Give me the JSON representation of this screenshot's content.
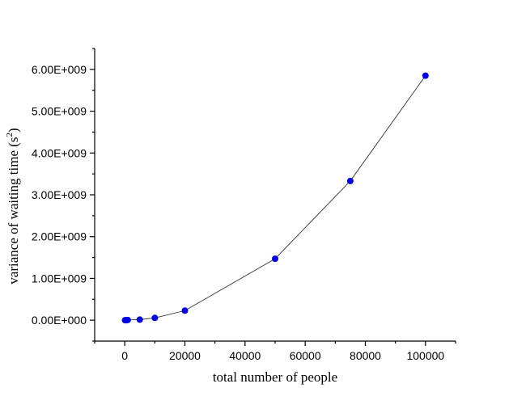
{
  "chart_data": {
    "type": "scatter",
    "title": "",
    "xlabel": "total number of people",
    "ylabel_main": "variance of waiting time (s",
    "ylabel_sup": "2",
    "ylabel_close": ")",
    "xlim": [
      -10000,
      110000
    ],
    "ylim": [
      -500000000,
      6500000000
    ],
    "x_ticks": [
      0,
      20000,
      40000,
      60000,
      80000,
      100000
    ],
    "x_tick_labels": [
      "0",
      "20000",
      "40000",
      "60000",
      "80000",
      "100000"
    ],
    "y_ticks": [
      0,
      1000000000,
      2000000000,
      3000000000,
      4000000000,
      5000000000,
      6000000000
    ],
    "y_tick_labels": [
      "0.00E+000",
      "1.00E+009",
      "2.00E+009",
      "3.00E+009",
      "4.00E+009",
      "5.00E+009",
      "6.00E+009"
    ],
    "grid": false,
    "colors": {
      "marker": "#0000e6",
      "line": "#333333"
    },
    "series": [
      {
        "x": [
          100,
          500,
          1000,
          5000,
          10000,
          20000,
          50000,
          75000,
          100000
        ],
        "y": [
          0,
          1500000,
          6000000,
          15000000,
          55000000,
          230000000,
          1470000000,
          3330000000,
          5850000000
        ]
      }
    ]
  }
}
